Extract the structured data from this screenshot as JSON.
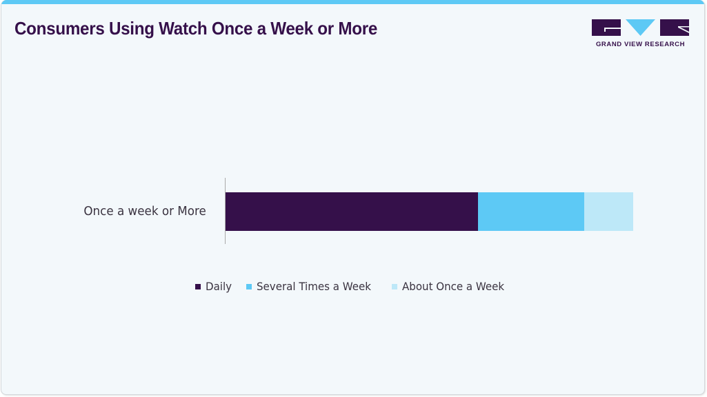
{
  "header": {
    "title": "Consumers Using Watch Once a Week or More",
    "accent_color": "#5dc9f5"
  },
  "logo": {
    "text": "GRAND VIEW RESEARCH",
    "primary_color": "#35104a",
    "accent_color": "#5dc9f5"
  },
  "legend": {
    "items": [
      {
        "label": "Daily",
        "color": "#35104a"
      },
      {
        "label": "Several Times a Week",
        "color": "#5dc9f5"
      },
      {
        "label": "About Once a Week",
        "color": "#bde8f8"
      }
    ]
  },
  "chart_data": {
    "type": "bar",
    "orientation": "horizontal",
    "stacked": true,
    "title": "Consumers Using Watch Once a Week or More",
    "categories": [
      "Once a week or More"
    ],
    "series": [
      {
        "name": "Daily",
        "values": [
          62
        ],
        "color": "#35104a"
      },
      {
        "name": "Several Times a Week",
        "values": [
          26
        ],
        "color": "#5dc9f5"
      },
      {
        "name": "About Once a Week",
        "values": [
          12
        ],
        "color": "#bde8f8"
      }
    ],
    "value_unit": "% share (estimated from bar lengths)",
    "xlabel": "",
    "ylabel": "",
    "grid": false,
    "axis_ticks_shown": false,
    "legend_position": "bottom"
  }
}
